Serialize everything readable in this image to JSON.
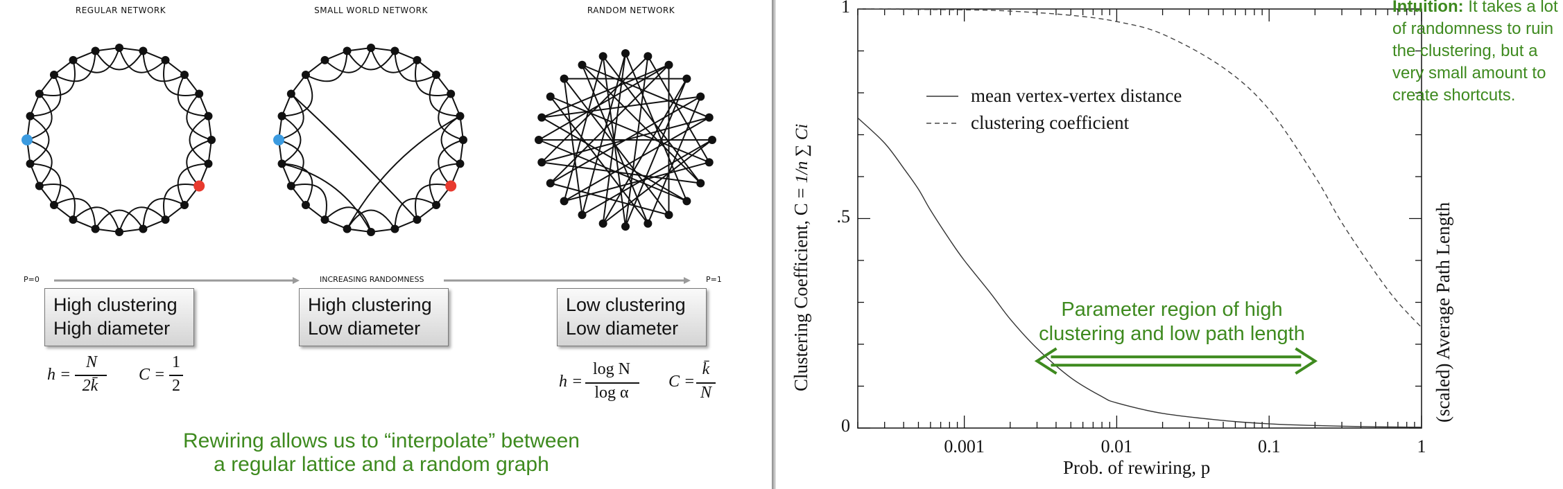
{
  "left_panel": {
    "networks": [
      {
        "title": "REGULAR NETWORK"
      },
      {
        "title": "SMALL WORLD NETWORK"
      },
      {
        "title": "RANDOM NETWORK"
      }
    ],
    "axis": {
      "start": "P=0",
      "middle": "INCREASING RANDOMNESS",
      "end": "P=1"
    },
    "boxes": [
      {
        "line1": "High clustering",
        "line2": "High diameter"
      },
      {
        "line1": "High clustering",
        "line2": "Low diameter"
      },
      {
        "line1": "Low clustering",
        "line2": "Low diameter"
      }
    ],
    "formulas": {
      "h_regular_lhs": "h =",
      "h_regular_num": "N",
      "h_regular_den": "2k̄",
      "c_regular_lhs": "C =",
      "c_regular_num": "1",
      "c_regular_den": "2",
      "h_random_lhs": "h =",
      "h_random_num": "log N",
      "h_random_den": "log α",
      "c_random_lhs": "C =",
      "c_random_num": "k̄",
      "c_random_den": "N"
    },
    "caption": {
      "line1": "Rewiring allows us to “interpolate” between",
      "line2": "a regular lattice and a random graph"
    },
    "colors": {
      "highlight_blue": "#3b9be0",
      "highlight_red": "#e83a2e",
      "accent_green": "#3e8a1f"
    }
  },
  "right_panel": {
    "chart_data": {
      "type": "line",
      "xscale": "log",
      "xlim": [
        0.0002,
        1
      ],
      "ylim": [
        0,
        1
      ],
      "xticks": [
        {
          "value": 0.001,
          "label": "0.001"
        },
        {
          "value": 0.01,
          "label": "0.01"
        },
        {
          "value": 0.1,
          "label": "0.1"
        },
        {
          "value": 1,
          "label": "1"
        }
      ],
      "yticks": [
        {
          "value": 0,
          "label": "0"
        },
        {
          "value": 0.5,
          "label": ".5"
        },
        {
          "value": 1,
          "label": "1"
        }
      ],
      "xlabel": "Prob. of rewiring, p",
      "ylabel_left": "Clustering Coefficient, C =",
      "ylabel_left_formula": "1/n ∑ Ci",
      "ylabel_right": "(scaled) Average Path Length",
      "series": [
        {
          "name": "mean vertex-vertex distance",
          "style": "solid",
          "x": [
            0.0002,
            0.0003,
            0.0004,
            0.0005,
            0.0006,
            0.0008,
            0.001,
            0.0015,
            0.002,
            0.003,
            0.005,
            0.008,
            0.01,
            0.02,
            0.05,
            0.1,
            0.2,
            0.5,
            1
          ],
          "y": [
            0.74,
            0.68,
            0.62,
            0.57,
            0.52,
            0.45,
            0.4,
            0.32,
            0.26,
            0.19,
            0.12,
            0.075,
            0.06,
            0.035,
            0.018,
            0.01,
            0.006,
            0.003,
            0.002
          ]
        },
        {
          "name": "clustering coefficient",
          "style": "dashed",
          "x": [
            0.0002,
            0.001,
            0.002,
            0.005,
            0.01,
            0.02,
            0.05,
            0.1,
            0.2,
            0.3,
            0.5,
            0.7,
            1
          ],
          "y": [
            1.0,
            0.998,
            0.995,
            0.985,
            0.97,
            0.94,
            0.86,
            0.76,
            0.6,
            0.49,
            0.37,
            0.3,
            0.24
          ]
        }
      ],
      "legend_position": "top-left",
      "annotation": {
        "line1": "Parameter region of high",
        "line2": "clustering and low path length",
        "x_from": 0.003,
        "x_to": 0.2,
        "y": 0.16
      }
    },
    "intuition": {
      "bold": "Intuition:",
      "text": " It takes a lot of randomness to ruin the clustering, but a very small amount to create shortcuts."
    }
  }
}
